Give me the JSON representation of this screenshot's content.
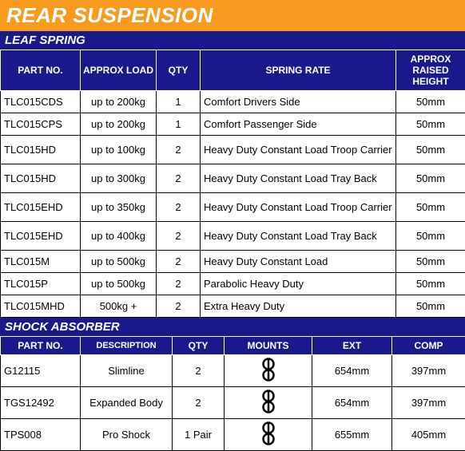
{
  "title": "REAR SUSPENSION",
  "leaf": {
    "title": "LEAF SPRING",
    "headers": [
      "PART NO.",
      "APPROX LOAD",
      "QTY",
      "SPRING RATE",
      "APPROX RAISED HEIGHT"
    ],
    "rows": [
      {
        "part": "TLC015CDS",
        "load": "up to 200kg",
        "qty": "1",
        "rate": "Comfort Drivers Side",
        "height": "50mm",
        "tall": false
      },
      {
        "part": "TLC015CPS",
        "load": "up to 200kg",
        "qty": "1",
        "rate": "Comfort Passenger Side",
        "height": "50mm",
        "tall": false
      },
      {
        "part": "TLC015HD",
        "load": "up to 100kg",
        "qty": "2",
        "rate": "Heavy Duty Constant Load Troop Carrier",
        "height": "50mm",
        "tall": true
      },
      {
        "part": "TLC015HD",
        "load": "up to 300kg",
        "qty": "2",
        "rate": "Heavy Duty Constant Load Tray Back",
        "height": "50mm",
        "tall": true
      },
      {
        "part": "TLC015EHD",
        "load": "up to 350kg",
        "qty": "2",
        "rate": "Heavy Duty Constant Load Troop Carrier",
        "height": "50mm",
        "tall": true
      },
      {
        "part": "TLC015EHD",
        "load": "up to 400kg",
        "qty": "2",
        "rate": "Heavy Duty Constant Load Tray Back",
        "height": "50mm",
        "tall": true
      },
      {
        "part": "TLC015M",
        "load": "up to 500kg",
        "qty": "2",
        "rate": "Heavy Duty Constant Load",
        "height": "50mm",
        "tall": false
      },
      {
        "part": "TLC015P",
        "load": "up to 500kg",
        "qty": "2",
        "rate": "Parabolic Heavy Duty",
        "height": "50mm",
        "tall": false
      },
      {
        "part": "TLC015MHD",
        "load": "500kg +",
        "qty": "2",
        "rate": "Extra Heavy Duty",
        "height": "50mm",
        "tall": false
      }
    ]
  },
  "shock": {
    "title": "SHOCK ABSORBER",
    "headers": [
      "PART NO.",
      "DESCRIPTION",
      "QTY",
      "MOUNTS",
      "EXT",
      "COMP"
    ],
    "rows": [
      {
        "part": "G12115",
        "desc": "Slimline",
        "qty": "2",
        "ext": "654mm",
        "comp": "397mm"
      },
      {
        "part": "TGS12492",
        "desc": "Expanded Body",
        "qty": "2",
        "ext": "654mm",
        "comp": "397mm"
      },
      {
        "part": "TPS008",
        "desc": "Pro Shock",
        "qty": "1 Pair",
        "ext": "655mm",
        "comp": "405mm"
      }
    ]
  },
  "colors": {
    "orange": "#f79a1e",
    "blue": "#1a1a8c",
    "white": "#ffffff",
    "black": "#000000"
  }
}
